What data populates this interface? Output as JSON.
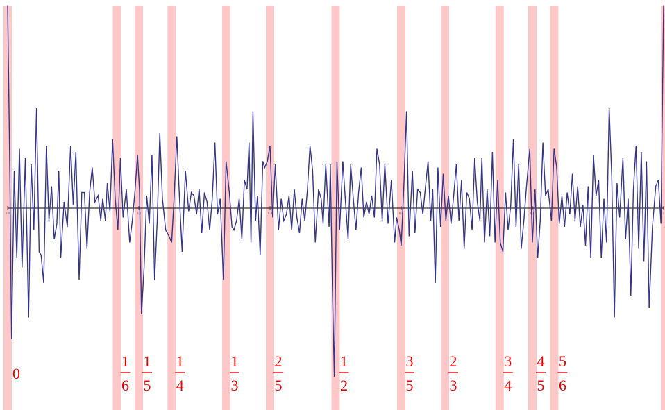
{
  "chart_data": {
    "type": "line",
    "title": "",
    "xlabel": "",
    "ylabel": "",
    "xlim": [
      0,
      1
    ],
    "grid": false,
    "x_ticks": [
      "0.0",
      "0.2",
      "0.4",
      "0.6",
      "0.8",
      "1"
    ],
    "highlight_bands": [
      {
        "x": 0.0,
        "label": "0"
      },
      {
        "x": 0.1667,
        "num": "1",
        "den": "6"
      },
      {
        "x": 0.2,
        "num": "1",
        "den": "5"
      },
      {
        "x": 0.25,
        "num": "1",
        "den": "4"
      },
      {
        "x": 0.3333,
        "num": "1",
        "den": "3"
      },
      {
        "x": 0.4,
        "num": "2",
        "den": "5"
      },
      {
        "x": 0.5,
        "num": "1",
        "den": "2"
      },
      {
        "x": 0.6,
        "num": "3",
        "den": "5"
      },
      {
        "x": 0.6667,
        "num": "2",
        "den": "3"
      },
      {
        "x": 0.75,
        "num": "3",
        "den": "4"
      },
      {
        "x": 0.8,
        "num": "4",
        "den": "5"
      },
      {
        "x": 0.8333,
        "num": "5",
        "den": "6"
      },
      {
        "x": 1.0
      }
    ],
    "series": [
      {
        "color": "#35358a",
        "highlight_color": "#b03060",
        "points": [
          [
            0.0,
            6.5
          ],
          [
            0.003,
            1.8
          ],
          [
            0.006,
            -4.2
          ],
          [
            0.01,
            1.2
          ],
          [
            0.014,
            -1.6
          ],
          [
            0.018,
            1.9
          ],
          [
            0.022,
            -1.9
          ],
          [
            0.027,
            1.6
          ],
          [
            0.032,
            -3.5
          ],
          [
            0.036,
            1.4
          ],
          [
            0.04,
            -0.7
          ],
          [
            0.044,
            3.2
          ],
          [
            0.048,
            -1.4
          ],
          [
            0.051,
            -1.5
          ],
          [
            0.055,
            -2.4
          ],
          [
            0.059,
            2.0
          ],
          [
            0.063,
            -0.4
          ],
          [
            0.067,
            0.7
          ],
          [
            0.071,
            -1.0
          ],
          [
            0.075,
            -0.5
          ],
          [
            0.078,
            1.2
          ],
          [
            0.081,
            -1.6
          ],
          [
            0.086,
            0.2
          ],
          [
            0.091,
            -0.6
          ],
          [
            0.096,
            2.0
          ],
          [
            0.1,
            0.1
          ],
          [
            0.104,
            1.8
          ],
          [
            0.109,
            -2.3
          ],
          [
            0.113,
            0.5
          ],
          [
            0.117,
            0.5
          ],
          [
            0.121,
            -1.3
          ],
          [
            0.125,
            0.5
          ],
          [
            0.129,
            1.3
          ],
          [
            0.133,
            0.2
          ],
          [
            0.138,
            0.4
          ],
          [
            0.142,
            -0.4
          ],
          [
            0.145,
            0.3
          ],
          [
            0.149,
            -0.4
          ],
          [
            0.152,
            0.8
          ],
          [
            0.156,
            -0.1
          ],
          [
            0.16,
            2.2
          ],
          [
            0.164,
            0.3
          ],
          [
            0.168,
            -0.7
          ],
          [
            0.172,
            1.6
          ],
          [
            0.176,
            -0.3
          ],
          [
            0.181,
            0.6
          ],
          [
            0.186,
            -1.1
          ],
          [
            0.19,
            -0.4
          ],
          [
            0.194,
            0.5
          ],
          [
            0.198,
            1.7
          ],
          [
            0.201,
            0.6
          ],
          [
            0.204,
            -3.4
          ],
          [
            0.208,
            -1.9
          ],
          [
            0.212,
            0.4
          ],
          [
            0.216,
            -0.5
          ],
          [
            0.22,
            1.7
          ],
          [
            0.224,
            -2.3
          ],
          [
            0.228,
            -0.4
          ],
          [
            0.232,
            2.4
          ],
          [
            0.236,
            0.3
          ],
          [
            0.241,
            -0.7
          ],
          [
            0.246,
            -0.9
          ],
          [
            0.25,
            -1.1
          ],
          [
            0.254,
            0.4
          ],
          [
            0.258,
            2.3
          ],
          [
            0.262,
            0.3
          ],
          [
            0.266,
            -1.4
          ],
          [
            0.271,
            1.2
          ],
          [
            0.276,
            -0.1
          ],
          [
            0.28,
            0.5
          ],
          [
            0.284,
            0.4
          ],
          [
            0.288,
            -0.2
          ],
          [
            0.292,
            0.6
          ],
          [
            0.296,
            -0.8
          ],
          [
            0.3,
            0.5
          ],
          [
            0.304,
            0.2
          ],
          [
            0.308,
            -0.7
          ],
          [
            0.312,
            0.3
          ],
          [
            0.316,
            2.1
          ],
          [
            0.32,
            -0.2
          ],
          [
            0.324,
            0.3
          ],
          [
            0.329,
            -2.3
          ],
          [
            0.333,
            1.5
          ],
          [
            0.338,
            0.5
          ],
          [
            0.342,
            -0.6
          ],
          [
            0.345,
            -0.7
          ],
          [
            0.349,
            -0.4
          ],
          [
            0.353,
            0.3
          ],
          [
            0.357,
            -1.0
          ],
          [
            0.361,
            0.9
          ],
          [
            0.365,
            0.6
          ],
          [
            0.368,
            2.1
          ],
          [
            0.371,
            -1.1
          ],
          [
            0.374,
            3.1
          ],
          [
            0.378,
            -0.4
          ],
          [
            0.381,
            0.4
          ],
          [
            0.385,
            -1.5
          ],
          [
            0.389,
            1.5
          ],
          [
            0.392,
            1.3
          ],
          [
            0.396,
            1.5
          ],
          [
            0.4,
            2.0
          ],
          [
            0.404,
            -0.3
          ],
          [
            0.408,
            1.4
          ],
          [
            0.413,
            -0.7
          ],
          [
            0.417,
            0.3
          ],
          [
            0.421,
            -0.4
          ],
          [
            0.425,
            -0.2
          ],
          [
            0.429,
            0.4
          ],
          [
            0.433,
            -0.7
          ],
          [
            0.437,
            0.6
          ],
          [
            0.441,
            -0.3
          ],
          [
            0.445,
            -0.8
          ],
          [
            0.449,
            0.3
          ],
          [
            0.453,
            -0.4
          ],
          [
            0.457,
            0.6
          ],
          [
            0.461,
            2.0
          ],
          [
            0.465,
            1.2
          ],
          [
            0.469,
            -1.1
          ],
          [
            0.474,
            0.6
          ],
          [
            0.478,
            0.3
          ],
          [
            0.481,
            -0.5
          ],
          [
            0.485,
            1.4
          ],
          [
            0.49,
            -0.6
          ],
          [
            0.492,
            1.4
          ],
          [
            0.495,
            -2.5
          ],
          [
            0.498,
            -5.4
          ],
          [
            0.502,
            1.5
          ],
          [
            0.506,
            -0.7
          ],
          [
            0.511,
            1.5
          ],
          [
            0.515,
            0.2
          ],
          [
            0.519,
            -1.0
          ],
          [
            0.523,
            1.4
          ],
          [
            0.527,
            0.3
          ],
          [
            0.531,
            -0.7
          ],
          [
            0.535,
            0.5
          ],
          [
            0.539,
            1.3
          ],
          [
            0.543,
            -0.3
          ],
          [
            0.547,
            0.2
          ],
          [
            0.551,
            -0.2
          ],
          [
            0.555,
            0.4
          ],
          [
            0.559,
            -0.3
          ],
          [
            0.563,
            1.9
          ],
          [
            0.567,
            1.4
          ],
          [
            0.571,
            -0.4
          ],
          [
            0.575,
            1.4
          ],
          [
            0.58,
            -0.5
          ],
          [
            0.585,
            0.9
          ],
          [
            0.59,
            -1.1
          ],
          [
            0.593,
            -0.3
          ],
          [
            0.597,
            -0.7
          ],
          [
            0.6,
            -1.2
          ],
          [
            0.604,
            0.7
          ],
          [
            0.608,
            3.1
          ],
          [
            0.612,
            -0.9
          ],
          [
            0.617,
            1.2
          ],
          [
            0.621,
            -0.8
          ],
          [
            0.625,
            0.6
          ],
          [
            0.629,
            0.5
          ],
          [
            0.633,
            -0.2
          ],
          [
            0.637,
            0.7
          ],
          [
            0.641,
            1.5
          ],
          [
            0.645,
            -0.4
          ],
          [
            0.648,
            0.6
          ],
          [
            0.652,
            -2.4
          ],
          [
            0.656,
            1.3
          ],
          [
            0.66,
            -0.6
          ],
          [
            0.664,
            1.1
          ],
          [
            0.668,
            -0.4
          ],
          [
            0.672,
            0.4
          ],
          [
            0.676,
            -0.5
          ],
          [
            0.68,
            0.4
          ],
          [
            0.684,
            1.4
          ],
          [
            0.688,
            -0.4
          ],
          [
            0.692,
            0.9
          ],
          [
            0.696,
            -1.3
          ],
          [
            0.7,
            0.5
          ],
          [
            0.704,
            0.3
          ],
          [
            0.708,
            -0.7
          ],
          [
            0.712,
            1.6
          ],
          [
            0.716,
            0.2
          ],
          [
            0.72,
            -0.4
          ],
          [
            0.723,
            1.6
          ],
          [
            0.727,
            -1.1
          ],
          [
            0.731,
            0.6
          ],
          [
            0.735,
            -0.9
          ],
          [
            0.739,
            1.8
          ],
          [
            0.743,
            -1.1
          ],
          [
            0.747,
            0.9
          ],
          [
            0.751,
            -1.1
          ],
          [
            0.755,
            -1.4
          ],
          [
            0.759,
            0.5
          ],
          [
            0.763,
            -0.7
          ],
          [
            0.767,
            0.1
          ],
          [
            0.771,
            2.2
          ],
          [
            0.775,
            -0.6
          ],
          [
            0.779,
            1.4
          ],
          [
            0.783,
            -1.3
          ],
          [
            0.787,
            -0.4
          ],
          [
            0.791,
            0.7
          ],
          [
            0.796,
            1.9
          ],
          [
            0.8,
            -1.1
          ],
          [
            0.804,
            0.6
          ],
          [
            0.808,
            -1.6
          ],
          [
            0.812,
            -0.4
          ],
          [
            0.816,
            2.1
          ],
          [
            0.82,
            0.4
          ],
          [
            0.824,
            0.6
          ],
          [
            0.829,
            -0.4
          ],
          [
            0.833,
            1.9
          ],
          [
            0.837,
            1.3
          ],
          [
            0.841,
            -0.5
          ],
          [
            0.845,
            0.4
          ],
          [
            0.849,
            -0.6
          ],
          [
            0.853,
            0.5
          ],
          [
            0.857,
            -0.2
          ],
          [
            0.861,
            1.1
          ],
          [
            0.865,
            -0.4
          ],
          [
            0.869,
            0.7
          ],
          [
            0.873,
            -0.6
          ],
          [
            0.877,
            0.1
          ],
          [
            0.881,
            -1.2
          ],
          [
            0.885,
            0.7
          ],
          [
            0.889,
            -1.6
          ],
          [
            0.893,
            1.7
          ],
          [
            0.897,
            0.4
          ],
          [
            0.901,
            0.9
          ],
          [
            0.905,
            -1.6
          ],
          [
            0.909,
            0.3
          ],
          [
            0.913,
            -1.1
          ],
          [
            0.917,
            3.2
          ],
          [
            0.921,
            1.0
          ],
          [
            0.925,
            -3.5
          ],
          [
            0.929,
            0.8
          ],
          [
            0.933,
            -0.3
          ],
          [
            0.938,
            1.6
          ],
          [
            0.942,
            -1.0
          ],
          [
            0.946,
            0.3
          ],
          [
            0.95,
            -2.8
          ],
          [
            0.954,
            0.6
          ],
          [
            0.958,
            2.0
          ],
          [
            0.962,
            -1.3
          ],
          [
            0.966,
            1.8
          ],
          [
            0.97,
            -1.7
          ],
          [
            0.974,
            1.5
          ],
          [
            0.978,
            -3.2
          ],
          [
            0.983,
            -0.6
          ],
          [
            0.988,
            0.7
          ],
          [
            0.992,
            0.9
          ],
          [
            0.996,
            -0.5
          ],
          [
            1.0,
            6.5
          ]
        ]
      }
    ]
  }
}
